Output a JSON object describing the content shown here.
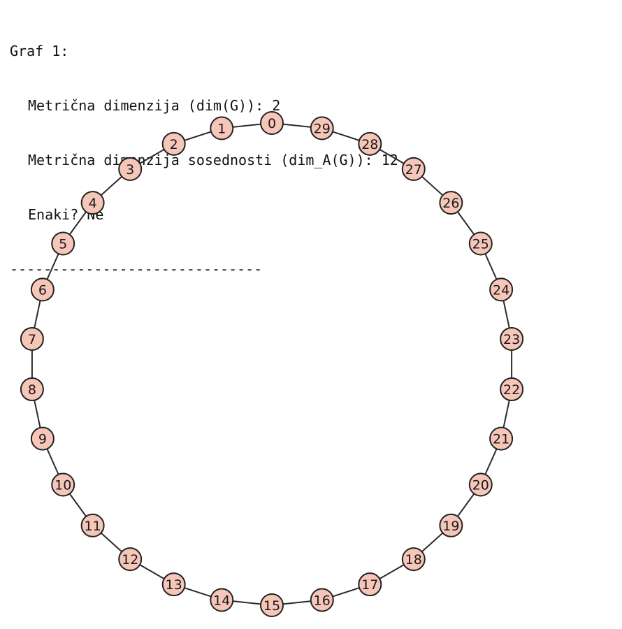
{
  "output": {
    "heading": "Graf 1:",
    "metric_dimension": "Metrična dimenzija (dim(G)): 2",
    "adjacency_dimension": "Metrična dimenzija sosednosti (dim_A(G)): 12",
    "equal": "Enaki? Ne",
    "separator": "------------------------------"
  },
  "graph": {
    "type": "cycle",
    "nodes": [
      "0",
      "1",
      "2",
      "3",
      "4",
      "5",
      "6",
      "7",
      "8",
      "9",
      "10",
      "11",
      "12",
      "13",
      "14",
      "15",
      "16",
      "17",
      "18",
      "19",
      "20",
      "21",
      "22",
      "23",
      "24",
      "25",
      "26",
      "27",
      "28",
      "29"
    ],
    "edges": [
      [
        "0",
        "1"
      ],
      [
        "1",
        "2"
      ],
      [
        "2",
        "3"
      ],
      [
        "3",
        "4"
      ],
      [
        "4",
        "5"
      ],
      [
        "5",
        "6"
      ],
      [
        "6",
        "7"
      ],
      [
        "7",
        "8"
      ],
      [
        "8",
        "9"
      ],
      [
        "9",
        "10"
      ],
      [
        "10",
        "11"
      ],
      [
        "11",
        "12"
      ],
      [
        "12",
        "13"
      ],
      [
        "13",
        "14"
      ],
      [
        "14",
        "15"
      ],
      [
        "15",
        "16"
      ],
      [
        "16",
        "17"
      ],
      [
        "17",
        "18"
      ],
      [
        "18",
        "19"
      ],
      [
        "19",
        "20"
      ],
      [
        "20",
        "21"
      ],
      [
        "21",
        "22"
      ],
      [
        "22",
        "23"
      ],
      [
        "23",
        "24"
      ],
      [
        "24",
        "25"
      ],
      [
        "25",
        "26"
      ],
      [
        "26",
        "27"
      ],
      [
        "27",
        "28"
      ],
      [
        "28",
        "29"
      ],
      [
        "29",
        "0"
      ]
    ],
    "node_fill": "#f6c6b8",
    "node_stroke": "#222222",
    "edge_color": "#2b2b2b"
  }
}
